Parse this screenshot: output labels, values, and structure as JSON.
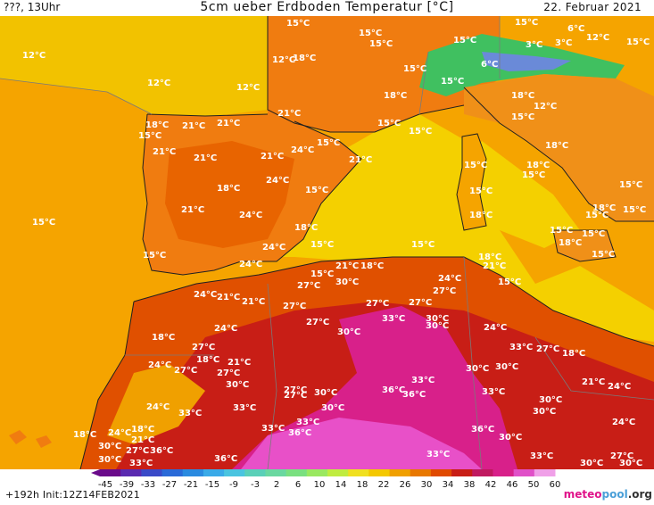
{
  "header": {
    "left": "???, 13Uhr",
    "title": "5cm ueber Erdboden Temperatur [°C]",
    "date": "22. Februar 2021"
  },
  "footer": {
    "run": "+192h",
    "init": "Init:12Z14FEB2021",
    "brand_prefix": "meteo",
    "brand_main": "pool",
    "brand_suffix": ".org"
  },
  "colors": {
    "sea_yellow": "#f4d000",
    "atlantic_orange": "#f5a400",
    "land_orange": "#f07c10",
    "land_red": "#e05000",
    "desert_red": "#c81e16",
    "desert_magenta": "#d8208a",
    "alps_green": "#40c060",
    "alps_blue": "#6a8ad8",
    "brand": "#e0148a"
  },
  "scale": {
    "ticks": [
      "-45",
      "-39",
      "-33",
      "-27",
      "-21",
      "-15",
      "-9",
      "-3",
      "2",
      "6",
      "10",
      "14",
      "18",
      "22",
      "26",
      "30",
      "34",
      "38",
      "42",
      "46",
      "50",
      "60"
    ],
    "colors": [
      "#6a0a8a",
      "#5a2ab0",
      "#3a4ac8",
      "#2a6ad8",
      "#2a8ae0",
      "#3aaae8",
      "#4ac4e0",
      "#5ad0b8",
      "#6ad8a0",
      "#7ae080",
      "#9ae860",
      "#c0ec40",
      "#f0e020",
      "#f4c800",
      "#f0a000",
      "#e87800",
      "#e04a00",
      "#c81e16",
      "#c01a60",
      "#d8208a",
      "#e050c8",
      "#f0a0e8"
    ]
  },
  "labels": [
    "15°C",
    "12°C",
    "12°C",
    "12°C",
    "12°C",
    "18°C",
    "15°C",
    "15°C",
    "15°C",
    "15°C",
    "15°C",
    "15°C",
    "6°C",
    "3°C",
    "3°C",
    "6°C",
    "12°C",
    "15°C",
    "18°C",
    "21°C",
    "21°C",
    "21°C",
    "24°C",
    "15°C",
    "21°C",
    "18°C",
    "24°C",
    "24°C",
    "21°C",
    "21°C",
    "24°C",
    "24°C",
    "21°C",
    "18°C",
    "15°C",
    "21°C",
    "18°C",
    "15°C",
    "15°C",
    "15°C",
    "15°C",
    "15°C",
    "18°C",
    "15°C",
    "12°C",
    "18°C",
    "15°C",
    "15°C",
    "18°C",
    "15°C",
    "18°C",
    "15°C",
    "15°C",
    "15°C",
    "18°C",
    "15°C",
    "15°C",
    "15°C",
    "15°C",
    "15°C",
    "18°C",
    "15°C",
    "21°C",
    "18°C",
    "18°C",
    "15°C",
    "24°C",
    "21°C",
    "27°C",
    "30°C",
    "21°C",
    "27°C",
    "33°C",
    "27°C",
    "27°C",
    "24°C",
    "27°C",
    "30°C",
    "24°C",
    "30°C",
    "27°C",
    "18°C",
    "18°C",
    "24°C",
    "27°C",
    "21°C",
    "27°C",
    "18°C",
    "21°C",
    "24°C",
    "27°C",
    "30°C",
    "27°C",
    "30°C",
    "33°C",
    "30°C",
    "30°C",
    "33°C",
    "30°C",
    "30°C",
    "21°C",
    "24°C",
    "33°C",
    "30°C",
    "27°C",
    "30°C",
    "36°C",
    "33°C",
    "36°C",
    "33°C",
    "30°C",
    "36°C",
    "27°C",
    "24°C",
    "24°C",
    "18°C",
    "21°C",
    "27°C",
    "33°C",
    "30°C",
    "18°C",
    "36°C",
    "33°C",
    "33°C",
    "36°C",
    "33°C",
    "33°C",
    "27°C",
    "30°C",
    "30°C",
    "24°C",
    "36°C",
    "30°C"
  ]
}
